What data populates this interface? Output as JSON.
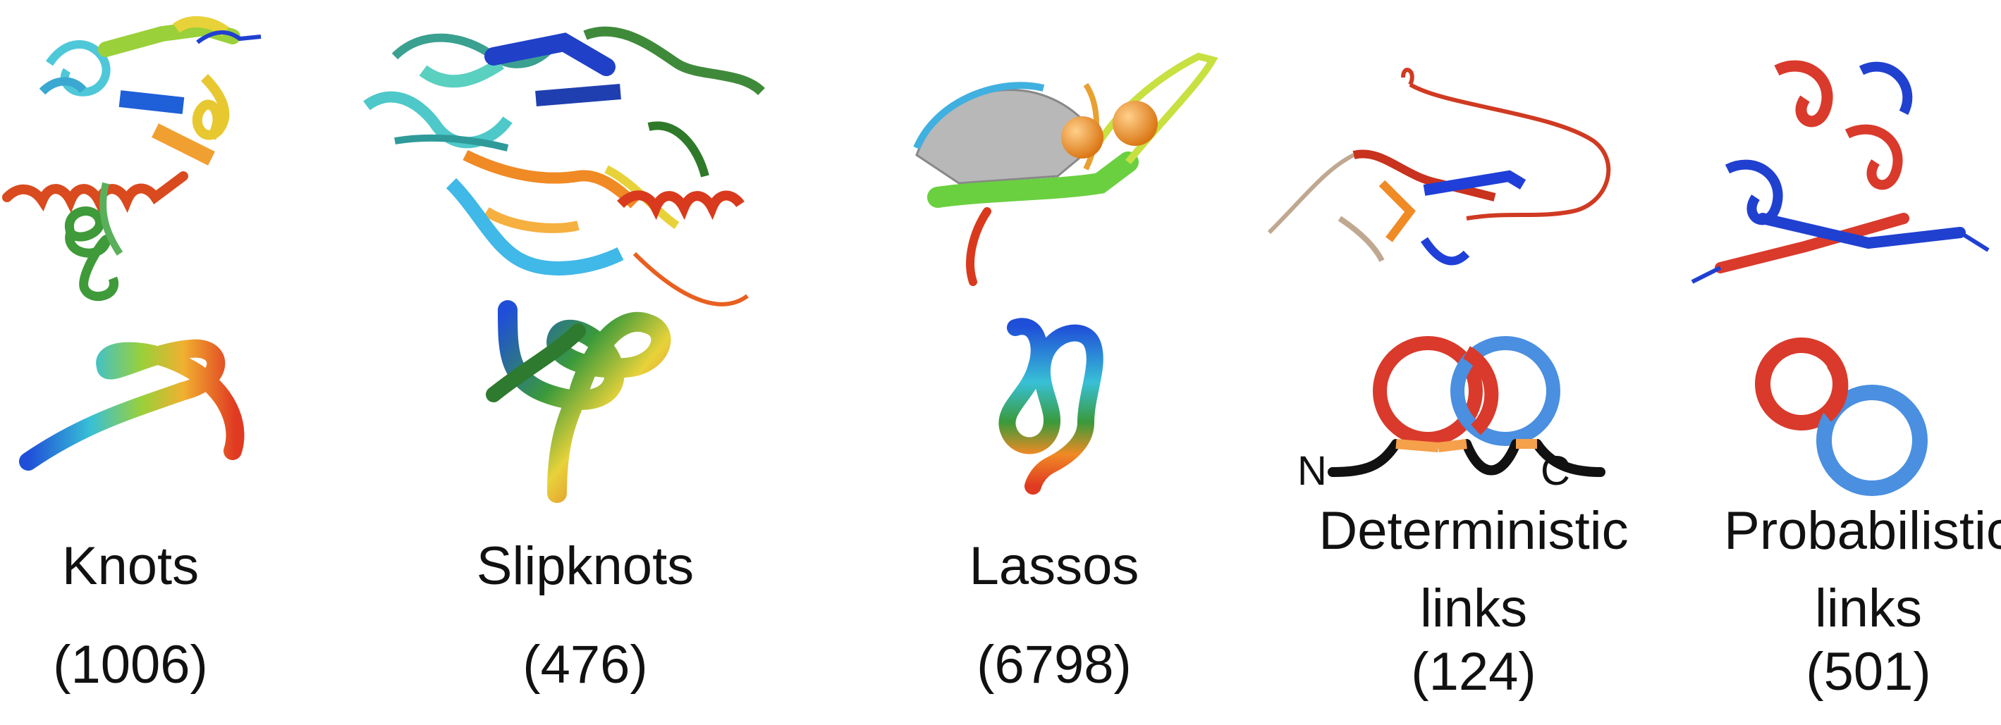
{
  "categories": [
    {
      "id": "knots",
      "label": "Knots",
      "count": "(1006)"
    },
    {
      "id": "slipknots",
      "label": "Slipknots",
      "count": "(476)"
    },
    {
      "id": "lassos",
      "label": "Lassos",
      "count": "(6798)"
    },
    {
      "id": "deterministic-links",
      "label_line1": "Deterministic",
      "label_line2": "links",
      "count": "(124)"
    },
    {
      "id": "probabilistic-links",
      "label_line1": "Probabilistic",
      "label_line2": "links",
      "count": "(501)"
    }
  ],
  "terminus": {
    "n": "N",
    "c": "C"
  },
  "colors": {
    "red": "#d93a2b",
    "blue": "#2a5bd7",
    "light_blue": "#4a8fe0",
    "cyan": "#40c8d8",
    "green": "#3f9a3a",
    "yellow": "#e8d23a",
    "orange": "#f08a24",
    "gray": "#bbbbbb"
  }
}
